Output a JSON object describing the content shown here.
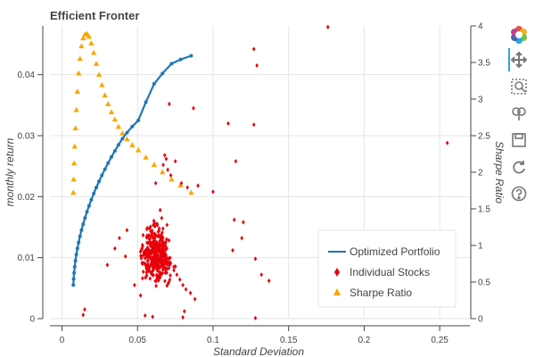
{
  "toolbar": {
    "items": [
      "bokeh-logo",
      "pan",
      "box-zoom",
      "wheel-zoom",
      "save",
      "reset",
      "help"
    ],
    "active_tool": "pan",
    "accent": "#26aae1"
  },
  "chart_data": {
    "type": "scatter",
    "title": "Efficient Fronter",
    "xlabel": "Standard Deviation",
    "ylabel": "monthly return",
    "y2label": "Sharpe Ratio",
    "xlim": [
      -0.008,
      0.27
    ],
    "ylim": [
      0,
      0.048
    ],
    "y2lim": [
      0,
      4
    ],
    "xticks": [
      0,
      0.05,
      0.1,
      0.15,
      0.2,
      0.25
    ],
    "xtick_labels": [
      "0",
      "0.05",
      "0.1",
      "0.15",
      "0.2",
      "0.25"
    ],
    "yticks": [
      0,
      0.01,
      0.02,
      0.03,
      0.04
    ],
    "ytick_labels": [
      "0",
      "0.01",
      "0.02",
      "0.03",
      "0.04"
    ],
    "y2ticks": [
      0,
      0.5,
      1,
      1.5,
      2,
      2.5,
      3,
      3.5,
      4
    ],
    "y2tick_labels": [
      "0",
      "0.5",
      "1",
      "1.5",
      "2",
      "2.5",
      "3",
      "3.5",
      "4"
    ],
    "grid": true,
    "legend_position": "bottom-right",
    "legend": [
      "Optimized Portfolio",
      "Individual Stocks",
      "Sharpe Ratio"
    ],
    "colors": {
      "optimized": "#1f77b4",
      "stocks": "#e8000b",
      "sharpe": "#ffa500",
      "grid": "#e5e5e5",
      "axis": "#444444"
    },
    "series": [
      {
        "name": "Optimized Portfolio",
        "kind": "line",
        "x": [
          0.0075,
          0.0077,
          0.008,
          0.0084,
          0.0089,
          0.0095,
          0.0102,
          0.011,
          0.0119,
          0.0129,
          0.014,
          0.0152,
          0.0165,
          0.0179,
          0.0194,
          0.021,
          0.0227,
          0.0245,
          0.0264,
          0.0284,
          0.0305,
          0.0327,
          0.035,
          0.0374,
          0.04,
          0.043,
          0.0465,
          0.0505,
          0.0555,
          0.061,
          0.0665,
          0.0725,
          0.0785,
          0.0855
        ],
        "y": [
          0.0055,
          0.0065,
          0.0075,
          0.0085,
          0.0095,
          0.0105,
          0.0115,
          0.0125,
          0.0135,
          0.0145,
          0.0155,
          0.0165,
          0.0175,
          0.0185,
          0.0195,
          0.0205,
          0.0215,
          0.0225,
          0.0235,
          0.0245,
          0.0255,
          0.0265,
          0.0275,
          0.0285,
          0.0295,
          0.0305,
          0.0315,
          0.0325,
          0.0355,
          0.0385,
          0.0402,
          0.0418,
          0.0425,
          0.0431
        ]
      },
      {
        "name": "Sharpe Ratio",
        "kind": "scatter",
        "axis": "right",
        "x": [
          0.0075,
          0.0077,
          0.008,
          0.0084,
          0.0089,
          0.0095,
          0.0102,
          0.011,
          0.0119,
          0.0129,
          0.014,
          0.0152,
          0.0165,
          0.0179,
          0.0194,
          0.021,
          0.0227,
          0.0245,
          0.0264,
          0.0284,
          0.0305,
          0.0327,
          0.035,
          0.0374,
          0.04,
          0.043,
          0.0465,
          0.0505,
          0.0555,
          0.061,
          0.0665,
          0.0725,
          0.0785,
          0.0855
        ],
        "y": [
          1.72,
          1.9,
          2.12,
          2.35,
          2.6,
          2.85,
          3.1,
          3.35,
          3.55,
          3.72,
          3.83,
          3.88,
          3.89,
          3.85,
          3.76,
          3.63,
          3.48,
          3.33,
          3.19,
          3.05,
          2.93,
          2.82,
          2.72,
          2.62,
          2.53,
          2.45,
          2.37,
          2.3,
          2.2,
          2.1,
          2.0,
          1.9,
          1.82,
          1.72
        ]
      },
      {
        "name": "Individual Stocks",
        "kind": "scatter",
        "x": [
          0.176,
          0.127,
          0.129,
          0.255,
          0.127,
          0.071,
          0.087,
          0.11,
          0.067,
          0.068,
          0.069,
          0.07,
          0.072,
          0.075,
          0.079,
          0.083,
          0.09,
          0.1,
          0.115,
          0.12,
          0.114,
          0.119,
          0.113,
          0.128,
          0.132,
          0.137,
          0.062,
          0.065,
          0.066,
          0.058,
          0.06,
          0.061,
          0.063,
          0.071,
          0.074,
          0.076,
          0.078,
          0.08,
          0.082,
          0.085,
          0.088,
          0.043,
          0.038,
          0.035,
          0.03,
          0.015,
          0.055,
          0.08,
          0.128,
          0.06,
          0.014,
          0.042,
          0.048,
          0.052,
          0.081
        ],
        "y": [
          0.0478,
          0.0442,
          0.0415,
          0.0288,
          0.0318,
          0.0352,
          0.0345,
          0.032,
          0.0252,
          0.0268,
          0.0262,
          0.0244,
          0.0235,
          0.0258,
          0.0222,
          0.0215,
          0.0218,
          0.0208,
          0.0258,
          0.0158,
          0.0162,
          0.0132,
          0.0112,
          0.0098,
          0.0072,
          0.0062,
          0.0222,
          0.0178,
          0.0165,
          0.0148,
          0.0135,
          0.0122,
          0.0105,
          0.0092,
          0.0085,
          0.0072,
          0.0064,
          0.0055,
          0.0048,
          0.0042,
          0.0032,
          0.0145,
          0.0132,
          0.0115,
          0.0088,
          0.0015,
          0.0005,
          0.0002,
          0.0001,
          0.0003,
          0.0006,
          0.0102,
          0.0055,
          0.0038,
          0.0012
        ]
      }
    ]
  }
}
